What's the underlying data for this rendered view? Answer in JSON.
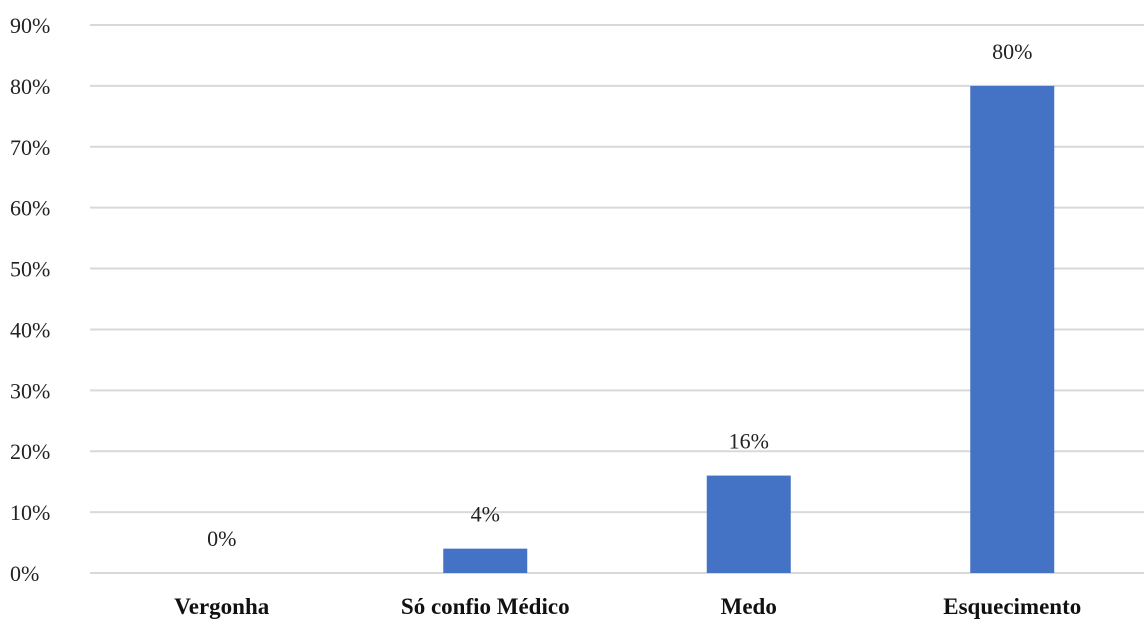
{
  "chart_data": {
    "type": "bar",
    "categories": [
      "Vergonha",
      "Só confio Médico",
      "Medo",
      "Esquecimento"
    ],
    "values": [
      0,
      4,
      16,
      80
    ],
    "data_labels": [
      "0%",
      "4%",
      "16%",
      "80%"
    ],
    "ylim": [
      0,
      90
    ],
    "yticks": [
      0,
      10,
      20,
      30,
      40,
      50,
      60,
      70,
      80,
      90
    ],
    "ytick_labels": [
      "0%",
      "10%",
      "20%",
      "30%",
      "40%",
      "50%",
      "60%",
      "70%",
      "80%",
      "90%"
    ],
    "grid": true,
    "bar_color": "#4472C4",
    "grid_color": "#D9D9D9"
  }
}
